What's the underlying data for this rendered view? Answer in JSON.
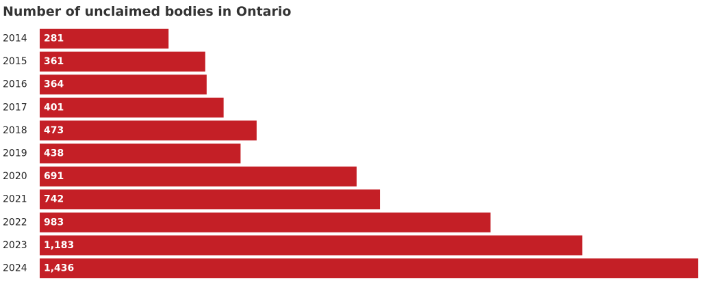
{
  "chart_data": {
    "type": "hbar",
    "title": "Number of unclaimed bodies in Ontario",
    "categories": [
      "2014",
      "2015",
      "2016",
      "2017",
      "2018",
      "2019",
      "2020",
      "2021",
      "2022",
      "2023",
      "2024"
    ],
    "values": [
      281,
      361,
      364,
      401,
      473,
      438,
      691,
      742,
      983,
      1183,
      1436
    ],
    "value_labels": [
      "281",
      "361",
      "364",
      "401",
      "473",
      "438",
      "691",
      "742",
      "983",
      "1,183",
      "1,436"
    ],
    "color": "#c41f26"
  }
}
